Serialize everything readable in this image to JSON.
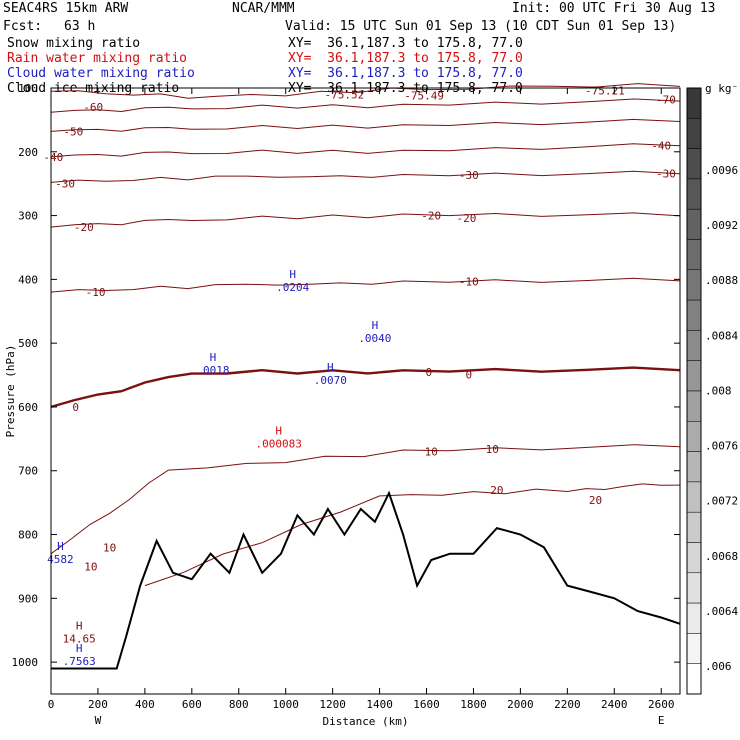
{
  "header": {
    "model": "SEAC4RS 15km ARW",
    "institution": "NCAR/MMM",
    "init": "Init: 00 UTC Fri 30 Aug 13",
    "fcst_label": "Fcst:",
    "fcst_value": "63 h",
    "valid": "Valid: 15 UTC Sun 01 Sep 13 (10 CDT Sun 01 Sep 13)"
  },
  "fields": [
    {
      "label": "Snow mixing ratio",
      "xy": "XY=  36.1,187.3 to 175.8, 77.0",
      "color": "#000000"
    },
    {
      "label": "Rain water mixing ratio",
      "xy": "XY=  36.1,187.3 to 175.8, 77.0",
      "color": "#d01010"
    },
    {
      "label": "Cloud water mixing ratio",
      "xy": "XY=  36.1,187.3 to 175.8, 77.0",
      "color": "#2020c0"
    },
    {
      "label": "Cloud ice mixing ratio",
      "xy": "XY=  36.1,187.3 to 175.8, 77.0",
      "color": "#000000"
    }
  ],
  "chart_data": {
    "type": "cross-section contour",
    "xlabel": "Distance (km)",
    "ylabel": "Pressure (hPa)",
    "xlim": [
      0,
      2680
    ],
    "ylim": [
      1050,
      100
    ],
    "x_ticks": [
      0,
      200,
      400,
      600,
      800,
      1000,
      1200,
      1400,
      1600,
      1800,
      2000,
      2200,
      2400,
      2600
    ],
    "y_ticks": [
      100,
      200,
      300,
      400,
      500,
      600,
      700,
      800,
      900,
      1000
    ],
    "endpoint_labels": {
      "left": "W",
      "right": "E"
    },
    "temperature_contours": [
      {
        "label": "-70",
        "level": -70,
        "points": [
          [
            0,
            105
          ],
          [
            700,
            115
          ],
          [
            1600,
            100
          ],
          [
            2680,
            95
          ]
        ]
      },
      {
        "label": "-60",
        "level": -60,
        "points": [
          [
            0,
            138
          ],
          [
            600,
            130
          ],
          [
            1500,
            128
          ],
          [
            2680,
            118
          ]
        ]
      },
      {
        "label": "-50",
        "level": -50,
        "points": [
          [
            0,
            168
          ],
          [
            600,
            162
          ],
          [
            1500,
            160
          ],
          [
            2680,
            150
          ]
        ]
      },
      {
        "label": "-40",
        "level": -40,
        "points": [
          [
            0,
            208
          ],
          [
            600,
            200
          ],
          [
            1500,
            200
          ],
          [
            2680,
            188
          ]
        ]
      },
      {
        "label": "-30",
        "level": -30,
        "points": [
          [
            0,
            248
          ],
          [
            700,
            240
          ],
          [
            1500,
            238
          ],
          [
            2680,
            232
          ]
        ]
      },
      {
        "label": "-20",
        "level": -20,
        "points": [
          [
            0,
            318
          ],
          [
            600,
            305
          ],
          [
            1500,
            300
          ],
          [
            2680,
            298
          ]
        ]
      },
      {
        "label": "-10",
        "level": -10,
        "points": [
          [
            0,
            420
          ],
          [
            700,
            410
          ],
          [
            1500,
            405
          ],
          [
            2680,
            400
          ]
        ]
      },
      {
        "label": "0",
        "level": 0,
        "points": [
          [
            0,
            600
          ],
          [
            600,
            545
          ],
          [
            1500,
            545
          ],
          [
            2680,
            540
          ]
        ]
      },
      {
        "label": "10",
        "level": 10,
        "points": [
          [
            0,
            830
          ],
          [
            500,
            700
          ],
          [
            1500,
            670
          ],
          [
            2680,
            660
          ]
        ]
      },
      {
        "label": "20",
        "level": 20,
        "points": [
          [
            400,
            880
          ],
          [
            1400,
            740
          ],
          [
            2200,
            730
          ],
          [
            2680,
            720
          ]
        ]
      }
    ],
    "contour_labels": [
      {
        "text": "-75.52",
        "x": 1250,
        "p": 110
      },
      {
        "text": "-75.49",
        "x": 1590,
        "p": 112
      },
      {
        "text": "-75.21",
        "x": 2360,
        "p": 104
      },
      {
        "text": "-70",
        "x": 2620,
        "p": 118
      },
      {
        "text": "-60",
        "x": 180,
        "p": 130
      },
      {
        "text": "-50",
        "x": 95,
        "p": 168
      },
      {
        "text": "-40",
        "x": 2600,
        "p": 190
      },
      {
        "text": "-40",
        "x": 10,
        "p": 208
      },
      {
        "text": "-30",
        "x": 1780,
        "p": 236
      },
      {
        "text": "-30",
        "x": 2620,
        "p": 234
      },
      {
        "text": "-30",
        "x": 60,
        "p": 250
      },
      {
        "text": "-20",
        "x": 1620,
        "p": 300
      },
      {
        "text": "-20",
        "x": 1770,
        "p": 304
      },
      {
        "text": "-20",
        "x": 140,
        "p": 318
      },
      {
        "text": "-10",
        "x": 1780,
        "p": 403
      },
      {
        "text": "-10",
        "x": 190,
        "p": 420
      },
      {
        "text": "0",
        "x": 1610,
        "p": 545
      },
      {
        "text": "0",
        "x": 1780,
        "p": 549
      },
      {
        "text": "0",
        "x": 105,
        "p": 600
      },
      {
        "text": "10",
        "x": 1620,
        "p": 670
      },
      {
        "text": "10",
        "x": 1880,
        "p": 666
      },
      {
        "text": "10",
        "x": 250,
        "p": 820
      },
      {
        "text": "10",
        "x": 170,
        "p": 850
      },
      {
        "text": "20",
        "x": 1900,
        "p": 730
      },
      {
        "text": "20",
        "x": 2320,
        "p": 746
      }
    ],
    "maxima_labels": [
      {
        "text": ".0204",
        "x": 1030,
        "p": 412,
        "color": "#2020c0"
      },
      {
        "text": ".0040",
        "x": 1380,
        "p": 492,
        "color": "#2020c0"
      },
      {
        "text": ".0070",
        "x": 1190,
        "p": 558,
        "color": "#2020c0"
      },
      {
        "text": ".0018",
        "x": 690,
        "p": 542,
        "color": "#2020c0"
      },
      {
        "text": ".000083",
        "x": 970,
        "p": 657,
        "color": "#d01010"
      },
      {
        "text": "14.65",
        "x": 120,
        "p": 963,
        "color": "#7a1010"
      },
      {
        "text": ".7563",
        "x": 120,
        "p": 998,
        "color": "#2020c0"
      },
      {
        "text": "4582",
        "x": 40,
        "p": 838,
        "color": "#2020c0"
      }
    ],
    "colorbar": {
      "unit": "g kg⁻¹",
      "ticks": [
        ".006",
        ".0064",
        ".0068",
        ".0072",
        ".0076",
        ".008",
        ".0084",
        ".0088",
        ".0092",
        ".0096"
      ]
    }
  }
}
